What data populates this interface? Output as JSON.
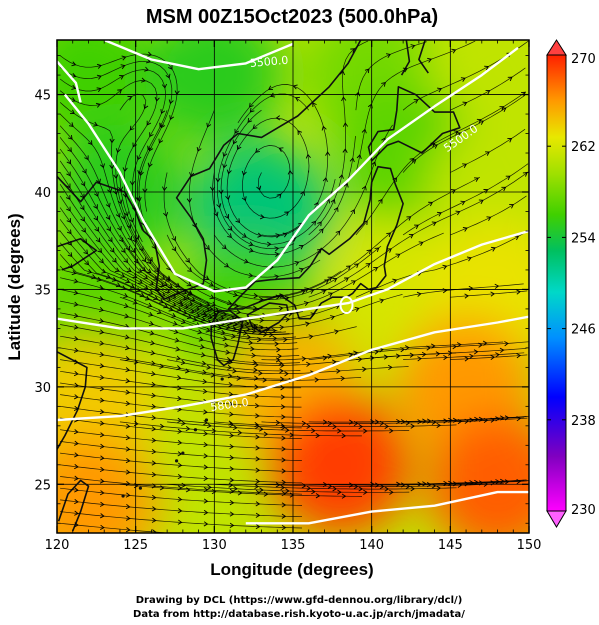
{
  "title": "MSM 00Z15Oct2023 (500.0hPa)",
  "xlabel": "Longitude (degrees)",
  "ylabel": "Latitude  (degrees)",
  "x_ticks": [
    120,
    125,
    130,
    135,
    140,
    145,
    150
  ],
  "y_ticks": [
    25,
    30,
    35,
    40,
    45
  ],
  "colorbar": {
    "ticks": [
      270,
      262,
      254,
      246,
      238,
      230
    ],
    "range": [
      230,
      270
    ]
  },
  "contours": {
    "labels": [
      "5500.0",
      "5500.0",
      "5800.0"
    ]
  },
  "credits": {
    "line1": "Drawing by DCL (https://www.gfd-dennou.org/library/dcl/)",
    "line2": "Data from http://database.rish.kyoto-u.ac.jp/arch/jmadata/"
  },
  "chart_data": {
    "type": "heatmap",
    "title": "MSM 00Z15Oct2023 (500.0hPa)",
    "xlabel": "Longitude (degrees)",
    "ylabel": "Latitude  (degrees)",
    "xlim": [
      120,
      150
    ],
    "ylim": [
      22.5,
      47.8
    ],
    "color_range": [
      230,
      270
    ],
    "colorbar_ticks": [
      270,
      262,
      254,
      246,
      238,
      230
    ],
    "contour_labels": [
      "5500.0",
      "5500.0",
      "5800.0"
    ],
    "contour_values": [
      5500,
      5800
    ],
    "grid": true,
    "overlays": [
      "wind streamlines",
      "height contours",
      "coastlines"
    ],
    "temperature_samples": [
      {
        "lon": 122,
        "lat": 46,
        "value": 256
      },
      {
        "lon": 130,
        "lat": 46,
        "value": 255
      },
      {
        "lon": 140,
        "lat": 46,
        "value": 258
      },
      {
        "lon": 148,
        "lat": 46,
        "value": 261
      },
      {
        "lon": 124,
        "lat": 40,
        "value": 255
      },
      {
        "lon": 133,
        "lat": 39,
        "value": 252
      },
      {
        "lon": 142,
        "lat": 42,
        "value": 257
      },
      {
        "lon": 148,
        "lat": 40,
        "value": 261
      },
      {
        "lon": 122,
        "lat": 34,
        "value": 257
      },
      {
        "lon": 132,
        "lat": 34,
        "value": 256
      },
      {
        "lon": 142,
        "lat": 35,
        "value": 262
      },
      {
        "lon": 148,
        "lat": 35,
        "value": 263
      },
      {
        "lon": 122,
        "lat": 29,
        "value": 264
      },
      {
        "lon": 135,
        "lat": 30,
        "value": 265
      },
      {
        "lon": 146,
        "lat": 30,
        "value": 266
      },
      {
        "lon": 122,
        "lat": 24,
        "value": 266
      },
      {
        "lon": 138,
        "lat": 26,
        "value": 269
      },
      {
        "lon": 148,
        "lat": 25,
        "value": 268
      }
    ]
  }
}
